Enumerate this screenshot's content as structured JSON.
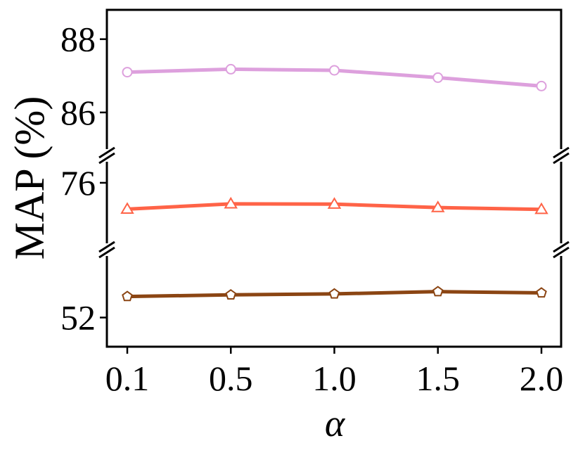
{
  "chart_data": {
    "type": "line",
    "xlabel": "α",
    "ylabel": "MAP (%)",
    "categories": [
      "0.1",
      "0.5",
      "1.0",
      "1.5",
      "2.0"
    ],
    "y_ticks": [
      "88",
      "86",
      "76",
      "52"
    ],
    "broken_y_axis": true,
    "panels": [
      {
        "ylim": [
          85.0,
          88.8
        ],
        "ticks": [
          86,
          88
        ]
      },
      {
        "ylim": [
          73.7,
          76.8
        ],
        "ticks": [
          76
        ]
      },
      {
        "ylim": [
          51.1,
          53.9
        ],
        "ticks": [
          52
        ]
      }
    ],
    "grid": false,
    "legend": "none",
    "series": [
      {
        "panel": 0,
        "values": [
          87.1,
          87.18,
          87.15,
          86.95,
          86.72
        ],
        "color": "#DDA0DD",
        "marker": "circle"
      },
      {
        "panel": 1,
        "values": [
          75.0,
          75.2,
          75.19,
          75.06,
          74.99
        ],
        "color": "#FF6347",
        "marker": "triangle"
      },
      {
        "panel": 2,
        "values": [
          52.65,
          52.7,
          52.73,
          52.8,
          52.76
        ],
        "color": "#8B4513",
        "marker": "pentagon"
      }
    ]
  }
}
